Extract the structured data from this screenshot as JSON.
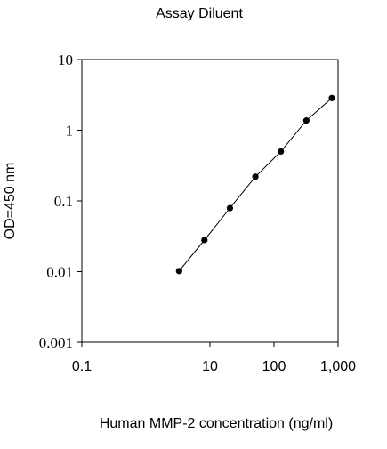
{
  "chart_data": {
    "type": "scatter",
    "title": "Assay Diluent",
    "xlabel": "Human MMP-2 concentration (ng/ml)",
    "ylabel": "OD=450 nm",
    "xscale": "log",
    "yscale": "log",
    "xlim": [
      0.1,
      1000
    ],
    "ylim": [
      0.001,
      10
    ],
    "xticks": [
      0.1,
      10,
      100,
      1000
    ],
    "xtick_labels": [
      "0.1",
      "10",
      "100",
      "1,000"
    ],
    "yticks": [
      0.001,
      0.01,
      0.1,
      1,
      10
    ],
    "ytick_labels": [
      "0.001",
      "0.01",
      "0.1",
      "1",
      "10"
    ],
    "grid": false,
    "series": [
      {
        "x": [
          3.3,
          8.2,
          20.5,
          51.2,
          128,
          320,
          800
        ],
        "y": [
          0.0102,
          0.028,
          0.079,
          0.22,
          0.5,
          1.37,
          2.85
        ],
        "line": true,
        "marker": "circle",
        "color": "#000000"
      }
    ]
  }
}
